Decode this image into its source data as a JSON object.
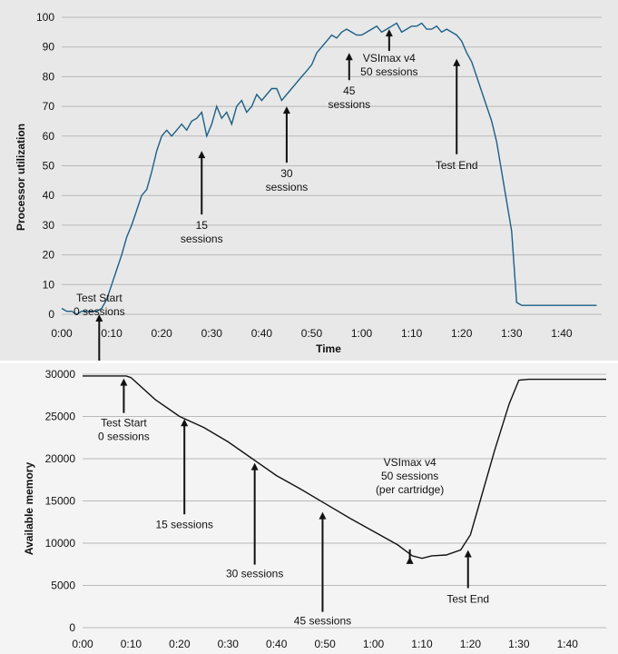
{
  "charts": {
    "processor": {
      "type": "line",
      "ylabel": "Processor utilization",
      "xlabel": "Time",
      "ylim": [
        0,
        100
      ],
      "y_ticks": [
        "0",
        "10",
        "20",
        "30",
        "40",
        "50",
        "60",
        "70",
        "80",
        "90",
        "100"
      ],
      "x_ticks": [
        "0:00",
        "0:10",
        "0:20",
        "0:30",
        "0:40",
        "0:50",
        "1:00",
        "1:10",
        "1:20",
        "1:30",
        "1:40"
      ],
      "annotations": [
        {
          "lines": [
            "Test Start",
            "0 sessions"
          ]
        },
        {
          "lines": [
            "15",
            "sessions"
          ]
        },
        {
          "lines": [
            "30",
            "sessions"
          ]
        },
        {
          "lines": [
            "45",
            "sessions"
          ]
        },
        {
          "lines": [
            "VSImax v4",
            "50 sessions"
          ]
        },
        {
          "lines": [
            "Test End"
          ]
        }
      ]
    },
    "memory": {
      "type": "line",
      "ylabel": "Available memory",
      "xlabel": "",
      "ylim": [
        0,
        30000
      ],
      "y_ticks": [
        "0",
        "5000",
        "10000",
        "15000",
        "20000",
        "25000",
        "30000"
      ],
      "x_ticks": [
        "0:00",
        "0:10",
        "0:20",
        "0:30",
        "0:40",
        "0:50",
        "1:00",
        "1:10",
        "1:20",
        "1:30",
        "1:40"
      ],
      "annotations": [
        {
          "lines": [
            "Test Start",
            "0 sessions"
          ]
        },
        {
          "lines": [
            "15 sessions"
          ]
        },
        {
          "lines": [
            "30 sessions"
          ]
        },
        {
          "lines": [
            "45 sessions"
          ]
        },
        {
          "lines": [
            "VSImax v4",
            "50 sessions",
            "(per cartridge)"
          ]
        },
        {
          "lines": [
            "Test End"
          ]
        }
      ]
    }
  },
  "chart_data": [
    {
      "type": "line",
      "title": "",
      "xlabel": "Time",
      "ylabel": "Processor utilization",
      "ylim": [
        0,
        100
      ],
      "xlim_minutes": [
        0,
        108
      ],
      "series": [
        {
          "name": "Processor utilization",
          "x": [
            0,
            1,
            2,
            3,
            4,
            5,
            6,
            7,
            8,
            9,
            10,
            11,
            12,
            13,
            14,
            15,
            16,
            17,
            18,
            19,
            20,
            21,
            22,
            23,
            24,
            25,
            26,
            27,
            28,
            29,
            30,
            31,
            32,
            33,
            34,
            35,
            36,
            37,
            38,
            39,
            40,
            41,
            42,
            43,
            44,
            45,
            46,
            47,
            48,
            49,
            50,
            51,
            52,
            53,
            54,
            55,
            56,
            57,
            58,
            59,
            60,
            61,
            62,
            63,
            64,
            65,
            66,
            67,
            68,
            69,
            70,
            71,
            72,
            73,
            74,
            75,
            76,
            77,
            78,
            79,
            80,
            81,
            82,
            83,
            84,
            85,
            86,
            87,
            88,
            89,
            90,
            91,
            92,
            93,
            94,
            95,
            96,
            97,
            98,
            99,
            100,
            101,
            102,
            103,
            104,
            105,
            106,
            107
          ],
          "y": [
            2,
            1,
            1,
            0,
            1,
            1,
            1,
            1,
            2,
            5,
            10,
            15,
            20,
            26,
            30,
            35,
            40,
            42,
            48,
            55,
            60,
            62,
            60,
            62,
            64,
            62,
            65,
            66,
            68,
            60,
            64,
            70,
            66,
            68,
            64,
            70,
            72,
            68,
            70,
            74,
            72,
            74,
            76,
            76,
            72,
            74,
            76,
            78,
            80,
            82,
            84,
            88,
            90,
            92,
            94,
            93,
            95,
            96,
            95,
            94,
            94,
            95,
            96,
            97,
            95,
            96,
            97,
            98,
            95,
            96,
            97,
            97,
            98,
            96,
            96,
            97,
            95,
            96,
            95,
            94,
            92,
            88,
            85,
            80,
            75,
            70,
            65,
            58,
            48,
            38,
            28,
            4,
            3,
            3,
            3,
            3,
            3,
            3,
            3,
            3,
            3,
            3,
            3,
            3,
            3,
            3,
            3,
            3
          ]
        }
      ],
      "annotations": [
        {
          "text": "Test Start 0 sessions",
          "x": 7.5,
          "y": 0
        },
        {
          "text": "15 sessions",
          "x": 28,
          "y": 55
        },
        {
          "text": "30 sessions",
          "x": 45,
          "y": 70
        },
        {
          "text": "45 sessions",
          "x": 57.5,
          "y": 88
        },
        {
          "text": "VSImax v4 50 sessions",
          "x": 65.5,
          "y": 96
        },
        {
          "text": "Test End",
          "x": 79,
          "y": 86
        }
      ]
    },
    {
      "type": "line",
      "title": "",
      "xlabel": "",
      "ylabel": "Available memory",
      "ylim": [
        0,
        30000
      ],
      "xlim_minutes": [
        0,
        108
      ],
      "series": [
        {
          "name": "Available memory",
          "x": [
            0,
            9,
            10,
            15,
            20,
            25,
            30,
            35,
            40,
            45,
            50,
            55,
            60,
            65,
            68,
            70,
            72,
            75,
            78,
            80,
            82,
            85,
            88,
            90,
            92,
            108
          ],
          "y": [
            29800,
            29800,
            29600,
            27000,
            25000,
            23700,
            22000,
            20000,
            18000,
            16400,
            14700,
            13000,
            11400,
            9800,
            8500,
            8200,
            8500,
            8600,
            9200,
            11000,
            15000,
            21000,
            26500,
            29300,
            29400,
            29400
          ]
        }
      ],
      "annotations": [
        {
          "text": "Test Start 0 sessions",
          "x": 8.5,
          "y": 29500
        },
        {
          "text": "15 sessions",
          "x": 21,
          "y": 24700
        },
        {
          "text": "30 sessions",
          "x": 35.5,
          "y": 19500
        },
        {
          "text": "45 sessions",
          "x": 49.5,
          "y": 13700
        },
        {
          "text": "VSImax v4 50 sessions (per cartridge)",
          "x": 67.5,
          "y": 8400
        },
        {
          "text": "Test End",
          "x": 79.5,
          "y": 9200
        }
      ]
    }
  ],
  "colors": {
    "cpu_line": "#1b5f86",
    "memory_line": "#111111",
    "panel_top_bg": "#e8e8e8",
    "panel_bottom_bg": "#f4f4f4"
  }
}
